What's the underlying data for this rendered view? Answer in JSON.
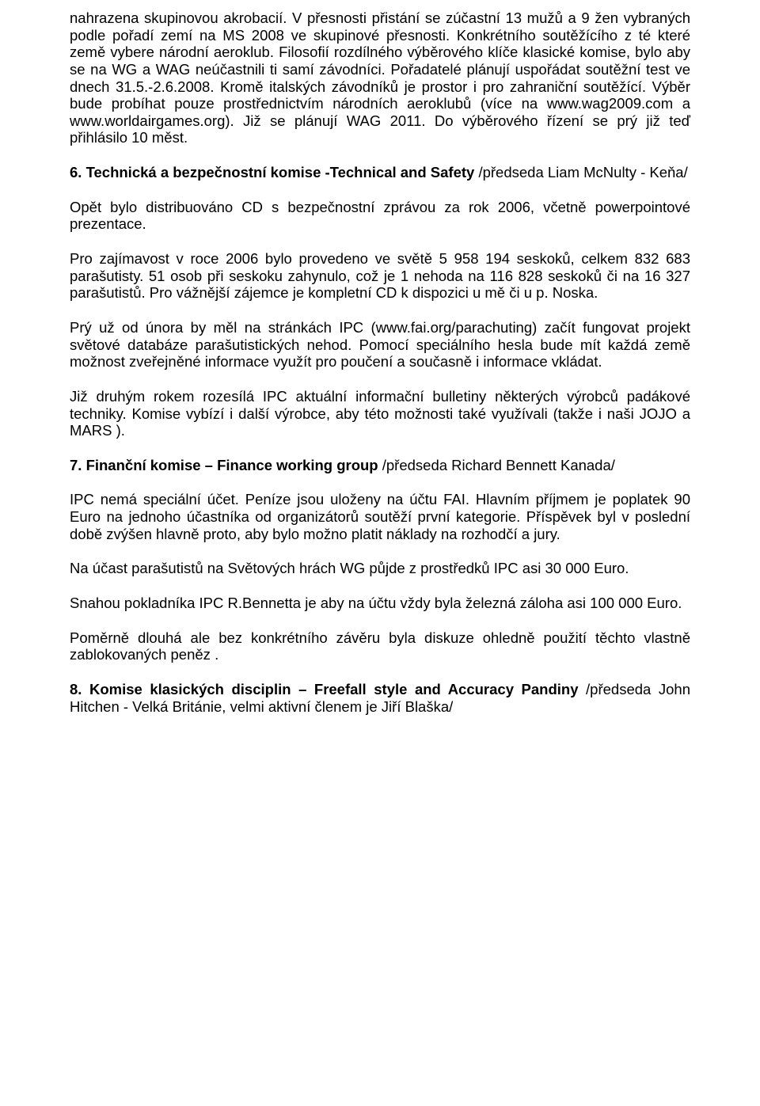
{
  "colors": {
    "text": "#000000",
    "background": "#ffffff"
  },
  "typography": {
    "font_family": "Arial",
    "font_size_pt": 14,
    "line_height": 1.17,
    "text_align": "justify"
  },
  "paragraphs": {
    "p1": "nahrazena skupinovou akrobacií. V přesnosti přistání se zúčastní 13 mužů a 9 žen vybraných podle pořadí zemí na MS 2008 ve skupinové přesnosti. Konkrétního soutěžícího z té které země vybere národní aeroklub. Filosofií rozdílného výběrového klíče klasické komise, bylo aby se na WG a WAG neúčastnili ti samí závodníci. Pořadatelé plánují uspořádat soutěžní test ve dnech 31.5.-2.6.2008. Kromě italských závodníků je prostor i pro zahraniční soutěžící. Výběr bude probíhat pouze prostřednictvím národních aeroklubů (více na www.wag2009.com a www.worldairgames.org). Již se plánují WAG 2011. Do výběrového řízení se prý již teď přihlásilo 10 měst.",
    "h6_bold": "6. Technická a bezpečnostní komise -Technical and Safety ",
    "h6_tail": "/předseda  Liam McNulty - Keňa/",
    "p3": "Opět bylo distribuováno CD s bezpečnostní zprávou za rok 2006, včetně powerpointové prezentace.",
    "p4": "Pro zajímavost v roce 2006 bylo provedeno ve světě 5 958 194 seskoků, celkem 832 683 parašutisty. 51 osob při seskoku zahynulo, což je 1 nehoda na 116 828 seskoků či na 16 327 parašutistů. Pro vážnější zájemce je kompletní CD k dispozici u mě či u p. Noska.",
    "p5": "Prý už od února by měl na stránkách IPC (www.fai.org/parachuting) začít fungovat projekt světové databáze parašutistických nehod. Pomocí speciálního hesla bude mít každá země možnost zveřejněné informace využít pro poučení a současně i informace vkládat.",
    "p6": "Již druhým rokem rozesílá IPC aktuální informační bulletiny některých výrobců padákové techniky. Komise vybízí i další výrobce, aby této možnosti také využívali (takže i naši JOJO a MARS ).",
    "h7_bold": "7. Finanční komise – Finance working group ",
    "h7_tail": "/předseda Richard Bennett Kanada/",
    "p8": "IPC nemá speciální  účet. Peníze jsou uloženy na účtu FAI. Hlavním příjmem je poplatek 90 Euro na jednoho účastníka od organizátorů soutěží první kategorie. Příspěvek byl v poslední době zvýšen hlavně proto, aby bylo možno platit náklady na rozhodčí a jury.",
    "p9": "Na účast parašutistů na  Světových hrách WG půjde z prostředků IPC  asi 30 000 Euro.",
    "p10": "Snahou pokladníka IPC R.Bennetta je aby na účtu vždy byla železná záloha asi 100 000 Euro.",
    "p11": "Poměrně dlouhá ale bez konkrétního závěru byla diskuze ohledně použití těchto vlastně zablokovaných peněz .",
    "h8_bold": "8. Komise klasických disciplin – Freefall style and Accuracy Pandiny ",
    "h8_tail": "/předseda John Hitchen - Velká Británie, velmi aktivní členem je Jiří Blaška/"
  }
}
